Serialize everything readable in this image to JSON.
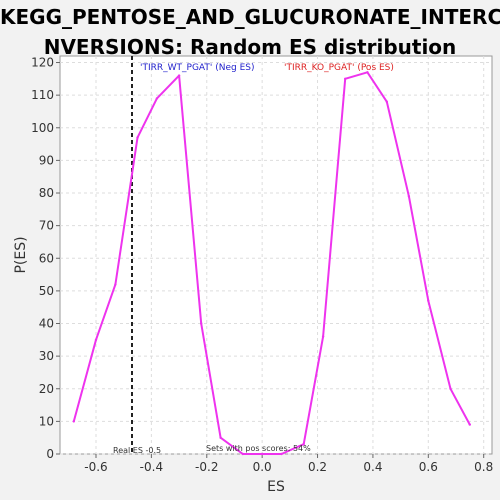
{
  "chart_data": {
    "type": "line",
    "title_line1": "KEGG_PENTOSE_AND_GLUCURONATE_INTERCO",
    "title_line2": "NVERSIONS: Random ES distribution",
    "xlabel": "ES",
    "ylabel": "P(ES)",
    "xlim": [
      -0.73,
      0.83
    ],
    "ylim": [
      0,
      122
    ],
    "x_ticks": [
      -0.6,
      -0.4,
      -0.2,
      0.0,
      0.2,
      0.4,
      0.6,
      0.8
    ],
    "y_ticks": [
      0,
      10,
      20,
      30,
      40,
      50,
      60,
      70,
      80,
      90,
      100,
      110,
      120
    ],
    "grid": true,
    "series": [
      {
        "color": "#ee33ee",
        "x": [
          -0.68,
          -0.6,
          -0.53,
          -0.45,
          -0.38,
          -0.3,
          -0.22,
          -0.15,
          -0.07,
          0.0,
          0.07,
          0.15,
          0.22,
          0.3,
          0.38,
          0.45,
          0.53,
          0.6,
          0.68,
          0.75
        ],
        "y": [
          10,
          35,
          52,
          97,
          109,
          116,
          40,
          5,
          0,
          0,
          0,
          3,
          36,
          115,
          117,
          108,
          79,
          47,
          20,
          9
        ]
      }
    ],
    "real_es": -0.47,
    "legend": {
      "neg": {
        "text": "'TIRR_WT_PGAT' (Neg ES)",
        "color": "#2222cc"
      },
      "pos": {
        "text": "'TIRR_KO_PGAT' (Pos ES)",
        "color": "#dd2222"
      }
    },
    "annotations": {
      "real_es": "Real ES -0.5",
      "pos_scores": "Sets with pos scores: 54%"
    }
  }
}
